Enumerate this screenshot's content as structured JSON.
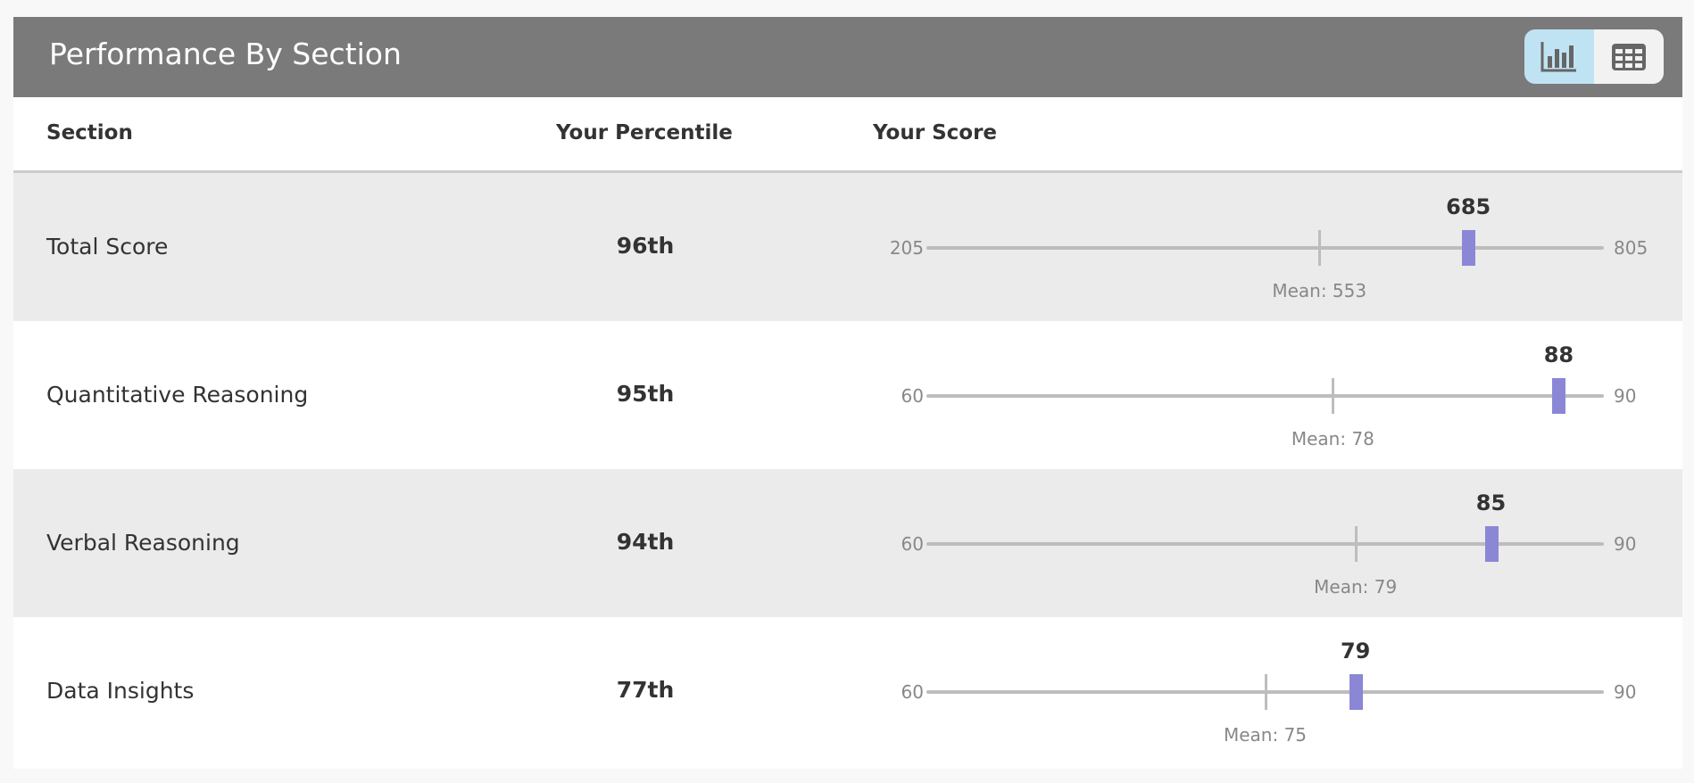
{
  "title": "Performance By Section",
  "view_toggle": {
    "active": "chart",
    "options": [
      "chart-icon",
      "table-icon"
    ]
  },
  "columns": [
    "Section",
    "Your Percentile",
    "Your Score"
  ],
  "marker_color": "#8b87d6",
  "rows": [
    {
      "section": "Total Score",
      "percentile": "96th",
      "min": 205,
      "max": 805,
      "score": 685,
      "mean": 553,
      "mean_label": "Mean: 553"
    },
    {
      "section": "Quantitative Reasoning",
      "percentile": "95th",
      "min": 60,
      "max": 90,
      "score": 88,
      "mean": 78,
      "mean_label": "Mean: 78"
    },
    {
      "section": "Verbal Reasoning",
      "percentile": "94th",
      "min": 60,
      "max": 90,
      "score": 85,
      "mean": 79,
      "mean_label": "Mean: 79"
    },
    {
      "section": "Data Insights",
      "percentile": "77th",
      "min": 60,
      "max": 90,
      "score": 79,
      "mean": 75,
      "mean_label": "Mean: 75"
    }
  ]
}
